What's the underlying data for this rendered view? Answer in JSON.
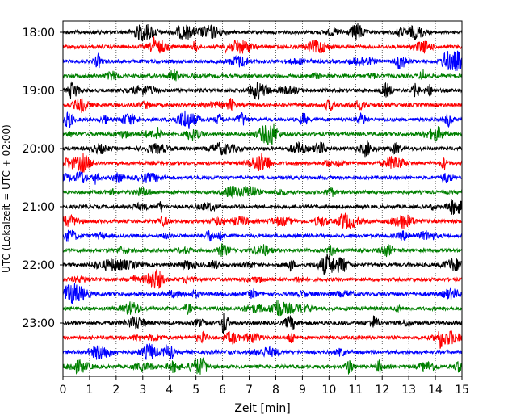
{
  "chart_data": {
    "type": "line",
    "xlabel": "Zeit  [min]",
    "ylabel": "UTC (Lokalzeit = UTC + 02:00)",
    "xlim": [
      0,
      15
    ],
    "x_ticks": [
      "0",
      "1",
      "2",
      "3",
      "4",
      "5",
      "6",
      "7",
      "8",
      "9",
      "10",
      "11",
      "12",
      "13",
      "14",
      "15"
    ],
    "y_tick_labels": [
      "18:00",
      "19:00",
      "20:00",
      "21:00",
      "22:00",
      "23:00"
    ],
    "row_start_times": [
      "18:00",
      "18:15",
      "18:30",
      "18:45",
      "19:00",
      "19:15",
      "19:30",
      "19:45",
      "20:00",
      "20:15",
      "20:30",
      "20:45",
      "21:00",
      "21:15",
      "21:30",
      "21:45",
      "22:00",
      "22:15",
      "22:30",
      "22:45",
      "23:00",
      "23:15",
      "23:30",
      "23:45"
    ],
    "row_minutes": 15,
    "row_colors": [
      "#000000",
      "#ff0000",
      "#0000ff",
      "#008000"
    ],
    "grid": "vertical dotted"
  }
}
